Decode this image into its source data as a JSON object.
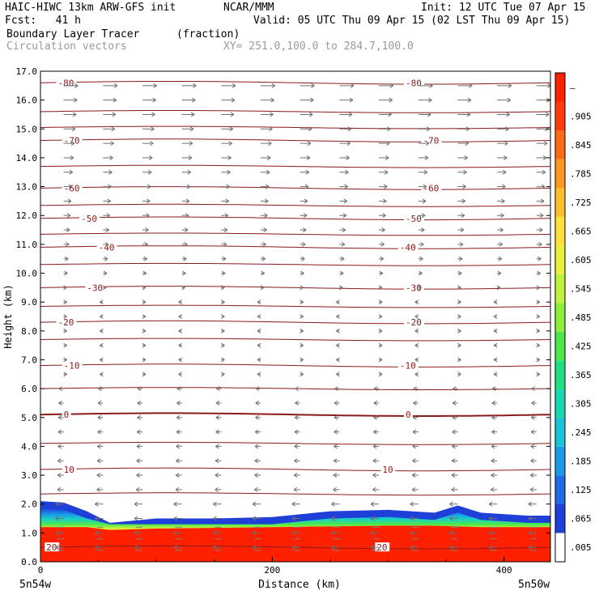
{
  "header": {
    "title_left": "HAIC-HIWC 13km ARW-GFS init",
    "org": "NCAR/MMM",
    "init": "Init: 12 UTC Tue 07 Apr 15",
    "fcst": "Fcst:   41 h",
    "valid": "Valid: 05 UTC Thu 09 Apr 15 (02 LST Thu 09 Apr 15)",
    "field1": "Boundary Layer Tracer",
    "field1_units": "(fraction)",
    "field2": "Circulation vectors",
    "xy": "XY= 251.0,100.0 to 284.7,100.0"
  },
  "colors": {
    "contour": "#8b1a1a",
    "vector": "#6e6e6e",
    "tracer_high": "#ff2000",
    "tracer_blue": "#1f3fd9"
  },
  "chart_data": {
    "type": "heatmap",
    "xlabel": "Distance (km)",
    "ylabel": "Height (km)",
    "xlim": [
      0,
      440
    ],
    "ylim": [
      0,
      17
    ],
    "x_ticks": [
      "0",
      "200",
      "400"
    ],
    "x_tick_values": [
      0,
      200,
      400
    ],
    "y_ticks": [
      "0.0",
      "1.0",
      "2.0",
      "3.0",
      "4.0",
      "5.0",
      "6.0",
      "7.0",
      "8.0",
      "9.0",
      "10.0",
      "11.0",
      "12.0",
      "13.0",
      "14.0",
      "15.0",
      "16.0",
      "17.0"
    ],
    "corner_left": "5n54w",
    "corner_right": "5n50w",
    "colorbar": {
      "labels": [
        ".005",
        ".065",
        ".125",
        ".185",
        ".245",
        ".305",
        ".365",
        ".425",
        ".485",
        ".545",
        ".605",
        ".665",
        ".725",
        ".785",
        ".845",
        ".905",
        "–"
      ],
      "colors": [
        "#ffffff",
        "#1f3fd9",
        "#1f6be6",
        "#1a9be8",
        "#19c3d8",
        "#18d8b0",
        "#1fe080",
        "#4ce84a",
        "#8bf03a",
        "#bff23a",
        "#e8f03a",
        "#ffe13a",
        "#ffbd2a",
        "#ff961f",
        "#ff6a15",
        "#ff3c0a",
        "#ff2000"
      ]
    },
    "isotherms": [
      {
        "label": "-80",
        "z": 16.6,
        "label_x": [
          15,
          315
        ]
      },
      {
        "label": "-70",
        "z": 14.6,
        "label_x": [
          20,
          330
        ]
      },
      {
        "label": "-60",
        "z": 12.95,
        "label_x": [
          20,
          330
        ]
      },
      {
        "label": "-50",
        "z": 11.9,
        "label_x": [
          35,
          315
        ]
      },
      {
        "label": "-40",
        "z": 10.9,
        "label_x": [
          50,
          310
        ]
      },
      {
        "label": "-30",
        "z": 9.5,
        "label_x": [
          40,
          315
        ]
      },
      {
        "label": "-20",
        "z": 8.3,
        "label_x": [
          15,
          315
        ]
      },
      {
        "label": "-10",
        "z": 6.8,
        "label_x": [
          20,
          310
        ]
      },
      {
        "label": "0",
        "z": 5.1,
        "label_x": [
          20,
          315
        ]
      },
      {
        "label": "10",
        "z": 3.2,
        "label_x": [
          20,
          295
        ]
      },
      {
        "label": "20",
        "z": 0.5,
        "label_x": [
          5,
          290
        ]
      }
    ],
    "unlabeled_isotherms": [
      15.6,
      15.05,
      13.7,
      12.35,
      11.35,
      10.3,
      8.85,
      7.7,
      6.0,
      4.1,
      2.35
    ]
  }
}
